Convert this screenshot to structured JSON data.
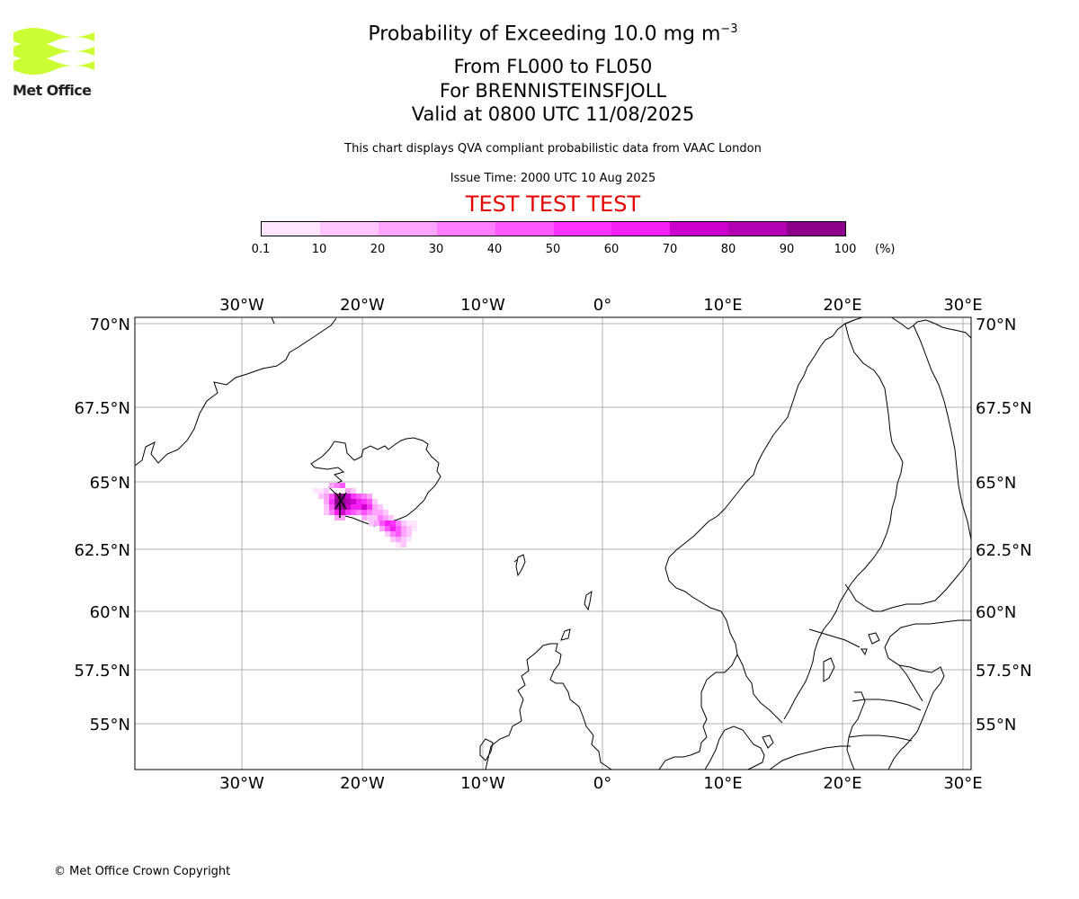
{
  "header": {
    "title_main": "Probability of Exceeding 10.0 mg m",
    "title_sup": "−3",
    "levels": "From FL000 to FL050",
    "volcano": "For BRENNISTEINSFJOLL",
    "valid": "Valid at 0800 UTC 11/08/2025",
    "note": "This chart displays QVA compliant probabilistic data from VAAC London",
    "issue": "Issue Time: 2000 UTC 10 Aug 2025",
    "test_banner": "TEST TEST TEST"
  },
  "logo": {
    "text": "Met Office",
    "color": "#ccff33"
  },
  "colorbar": {
    "labels": [
      "0.1",
      "10",
      "20",
      "30",
      "40",
      "50",
      "60",
      "70",
      "80",
      "90",
      "100"
    ],
    "unit": "(%)",
    "colors": [
      "#ffe5ff",
      "#ffc6ff",
      "#ffa5ff",
      "#ff7eff",
      "#ff57ff",
      "#ff33ff",
      "#f31ff3",
      "#cc00cc",
      "#b300b3",
      "#8c008c",
      "#640064"
    ]
  },
  "map": {
    "lon_labels": [
      "30°W",
      "20°W",
      "10°W",
      "0°",
      "10°E",
      "20°E",
      "30°E"
    ],
    "lat_labels": [
      "70°N",
      "67.5°N",
      "65°N",
      "62.5°N",
      "60°N",
      "57.5°N",
      "55°N"
    ]
  },
  "footer": {
    "copyright": "© Met Office Crown Copyright"
  }
}
